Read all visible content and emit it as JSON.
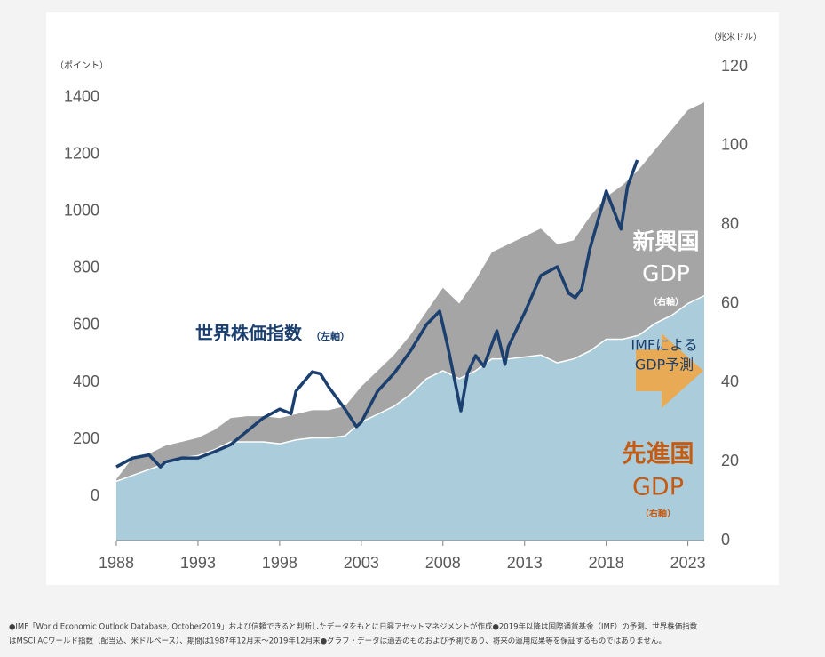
{
  "chart_data": {
    "type": "area",
    "y_unit_label": "（ポイント）",
    "y2_unit_label": "（兆米ドル）",
    "xlim": [
      1988,
      2024
    ],
    "xticks": [
      1988,
      1993,
      1998,
      2003,
      2008,
      2013,
      2018,
      2023
    ],
    "ylim": [
      -156,
      1509
    ],
    "yticks": [
      0,
      200,
      400,
      600,
      800,
      1000,
      1200,
      1400
    ],
    "y2lim": [
      0,
      120
    ],
    "y2ticks": [
      0,
      20,
      40,
      60,
      80,
      100,
      120
    ],
    "series": [
      {
        "name": "先進国",
        "type": "area",
        "axis": "y2",
        "color": "#abcddb",
        "x": [
          1988,
          1989,
          1990,
          1991,
          1992,
          1993,
          1994,
          1995,
          1996,
          1997,
          1998,
          1999,
          2000,
          2001,
          2002,
          2003,
          2004,
          2005,
          2006,
          2007,
          2008,
          2009,
          2010,
          2011,
          2012,
          2013,
          2014,
          2015,
          2016,
          2017,
          2018,
          2019,
          2020,
          2021,
          2022,
          2023,
          2024
        ],
        "values": [
          15,
          16.5,
          18,
          19.5,
          21,
          21.5,
          23,
          25,
          25,
          25,
          24.5,
          25.5,
          26,
          26,
          26.5,
          30,
          32,
          34,
          37,
          41,
          43,
          41,
          43,
          46,
          46,
          46.5,
          47,
          45,
          46,
          48,
          51,
          51,
          52,
          55,
          57,
          60,
          62
        ]
      },
      {
        "name": "新興国",
        "type": "area",
        "axis": "y2",
        "color": "#a5a5a5",
        "x": [
          1988,
          1989,
          1990,
          1991,
          1992,
          1993,
          1994,
          1995,
          1996,
          1997,
          1998,
          1999,
          2000,
          2001,
          2002,
          2003,
          2004,
          2005,
          2006,
          2007,
          2008,
          2009,
          2010,
          2011,
          2012,
          2013,
          2014,
          2015,
          2016,
          2017,
          2018,
          2019,
          2020,
          2021,
          2022,
          2023,
          2024
        ],
        "values": [
          0.5,
          4.5,
          4,
          4.5,
          4,
          4.5,
          5,
          6,
          6.5,
          6.5,
          6.5,
          6.5,
          7,
          7,
          7.5,
          9,
          11,
          13,
          15,
          17,
          21,
          19,
          23,
          27,
          29,
          30.5,
          32,
          30,
          30,
          34,
          36,
          39,
          42,
          44,
          47,
          49,
          49
        ]
      },
      {
        "name": "世界株価指数",
        "type": "line",
        "axis": "y",
        "color": "#1b3f6e",
        "x": [
          1988,
          1989,
          1990,
          1990.7,
          1991,
          1992,
          1993,
          1994,
          1995,
          1996,
          1997,
          1998,
          1998.7,
          1999,
          2000,
          2000.5,
          2001,
          2002,
          2002.7,
          2003,
          2004,
          2005,
          2006,
          2007,
          2007.8,
          2008.3,
          2009.1,
          2009.5,
          2010,
          2010.5,
          2011.3,
          2011.8,
          2012,
          2013,
          2014,
          2015,
          2015.7,
          2016.1,
          2016.5,
          2017,
          2018,
          2018.9,
          2019.3,
          2019.9
        ],
        "values": [
          103,
          134,
          145,
          103,
          120,
          134,
          134,
          156,
          181,
          228,
          275,
          306,
          290,
          369,
          437,
          430,
          384,
          306,
          244,
          260,
          369,
          431,
          509,
          603,
          650,
          525,
          300,
          431,
          494,
          456,
          581,
          463,
          525,
          644,
          775,
          806,
          713,
          697,
          728,
          869,
          1072,
          938,
          1088,
          1181
        ]
      }
    ],
    "annotations": {
      "stock_name": "世界株価指数",
      "stock_axis": "（左軸）",
      "emerging_name": "新興国",
      "emerging_gdp": "GDP",
      "emerging_axis": "（右軸）",
      "forecast_1": "IMFによる",
      "forecast_2": "GDP予測",
      "advanced_name": "先進国",
      "advanced_gdp": "GDP",
      "advanced_axis": "（右軸）"
    },
    "footnote": [
      "●IMF「World Economic Outlook Database, October2019」および信頼できると判断したデータをもとに日興アセットマネジメントが作成●2019年以降は国際通貨基金（IMF）の予測、世界株価指数",
      "はMSCI ACワールド指数（配当込、米ドルベース）、期間は1987年12月末～2019年12月末●グラフ・データは過去のものおよび予測であり、将来の運用成果等を保証するものではありません。"
    ]
  }
}
